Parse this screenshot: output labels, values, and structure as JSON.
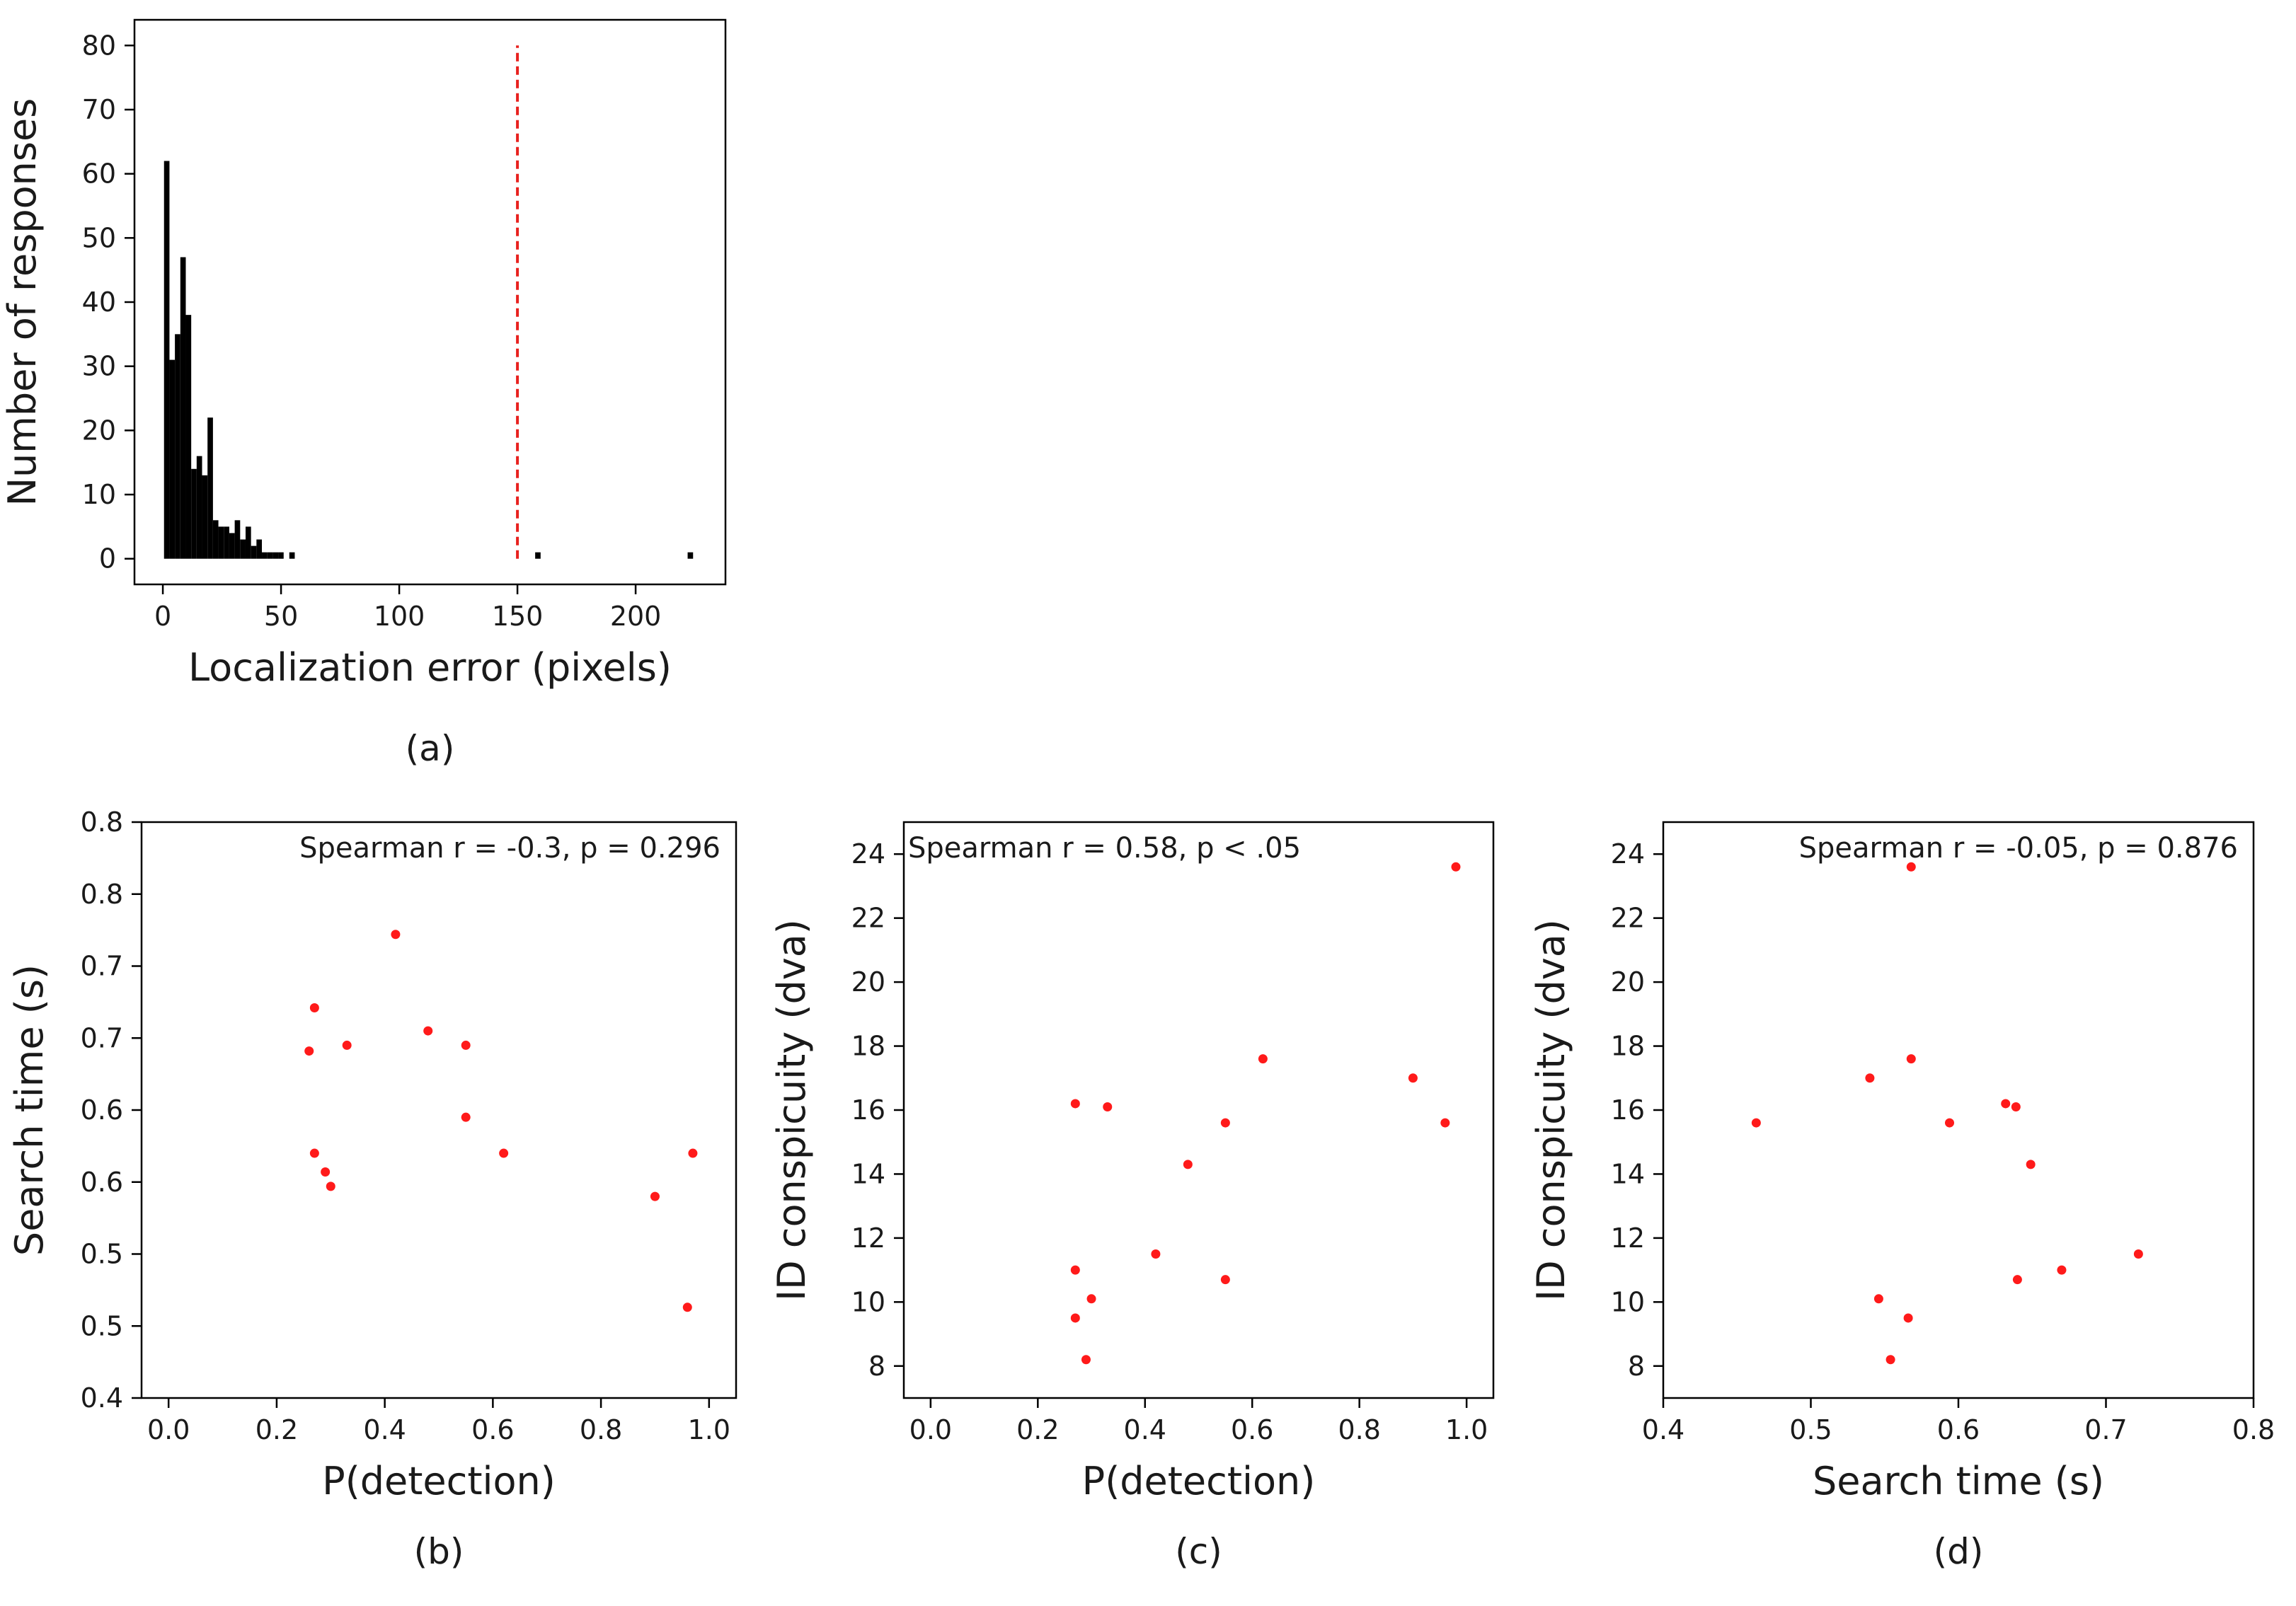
{
  "colors": {
    "hist_bar": "#000000",
    "scatter_point": "#ff1a1a",
    "threshold_line": "#e8211e",
    "axis": "#000000",
    "background": "#ffffff"
  },
  "chart_data": [
    {
      "id": "a",
      "type": "bar",
      "caption": "(a)",
      "xlabel": "Localization error (pixels)",
      "ylabel": "Number of responses",
      "xlim": [
        -12,
        238
      ],
      "ylim": [
        -4,
        84
      ],
      "xticks": [
        0,
        50,
        100,
        150,
        200
      ],
      "yticks": [
        0,
        10,
        20,
        30,
        40,
        50,
        60,
        70,
        80
      ],
      "bin_width": 2.3,
      "bins": [
        {
          "x": 0.5,
          "value": 62
        },
        {
          "x": 2.8,
          "value": 31
        },
        {
          "x": 5.1,
          "value": 35
        },
        {
          "x": 7.4,
          "value": 47
        },
        {
          "x": 9.7,
          "value": 38
        },
        {
          "x": 12.0,
          "value": 14
        },
        {
          "x": 14.3,
          "value": 16
        },
        {
          "x": 16.6,
          "value": 13
        },
        {
          "x": 18.9,
          "value": 22
        },
        {
          "x": 21.2,
          "value": 6
        },
        {
          "x": 23.5,
          "value": 5
        },
        {
          "x": 25.8,
          "value": 5
        },
        {
          "x": 28.1,
          "value": 4
        },
        {
          "x": 30.4,
          "value": 6
        },
        {
          "x": 32.7,
          "value": 3
        },
        {
          "x": 35.0,
          "value": 5
        },
        {
          "x": 37.3,
          "value": 2
        },
        {
          "x": 39.6,
          "value": 3
        },
        {
          "x": 41.9,
          "value": 1
        },
        {
          "x": 44.2,
          "value": 1
        },
        {
          "x": 46.5,
          "value": 1
        },
        {
          "x": 48.8,
          "value": 1
        },
        {
          "x": 53.5,
          "value": 1
        },
        {
          "x": 157.5,
          "value": 1
        },
        {
          "x": 222,
          "value": 1
        }
      ],
      "threshold_x": 150,
      "threshold_top": 80
    },
    {
      "id": "b",
      "type": "scatter",
      "caption": "(b)",
      "xlabel": "P(detection)",
      "ylabel": "Search time (s)",
      "annotation": "Spearman r = -0.3, p = 0.296",
      "xlim": [
        -0.05,
        1.05
      ],
      "ylim": [
        0.4,
        0.8
      ],
      "xticks": [
        0.0,
        0.2,
        0.4,
        0.6,
        0.8,
        1.0
      ],
      "xtick_labels": [
        "0.0",
        "0.2",
        "0.4",
        "0.6",
        "0.8",
        "1.0"
      ],
      "ytick_positions": [
        0.4,
        0.45,
        0.5,
        0.55,
        0.6,
        0.65,
        0.7,
        0.75,
        0.8
      ],
      "ytick_labels": [
        "0.4",
        "0.5",
        "0.5",
        "0.6",
        "0.6",
        "0.7",
        "0.7",
        "0.8",
        "0.8"
      ],
      "points": [
        {
          "x": 0.42,
          "y": 0.722
        },
        {
          "x": 0.27,
          "y": 0.671
        },
        {
          "x": 0.26,
          "y": 0.641
        },
        {
          "x": 0.33,
          "y": 0.645
        },
        {
          "x": 0.48,
          "y": 0.655
        },
        {
          "x": 0.55,
          "y": 0.645
        },
        {
          "x": 0.55,
          "y": 0.595
        },
        {
          "x": 0.27,
          "y": 0.57
        },
        {
          "x": 0.62,
          "y": 0.57
        },
        {
          "x": 0.97,
          "y": 0.57
        },
        {
          "x": 0.29,
          "y": 0.557
        },
        {
          "x": 0.3,
          "y": 0.547
        },
        {
          "x": 0.9,
          "y": 0.54
        },
        {
          "x": 0.96,
          "y": 0.463
        }
      ]
    },
    {
      "id": "c",
      "type": "scatter",
      "caption": "(c)",
      "xlabel": "P(detection)",
      "ylabel": "ID conspicuity (dva)",
      "annotation": "Spearman r = 0.58, p < .05",
      "xlim": [
        -0.05,
        1.05
      ],
      "ylim": [
        7,
        25
      ],
      "xticks": [
        0.0,
        0.2,
        0.4,
        0.6,
        0.8,
        1.0
      ],
      "xtick_labels": [
        "0.0",
        "0.2",
        "0.4",
        "0.6",
        "0.8",
        "1.0"
      ],
      "yticks": [
        8,
        10,
        12,
        14,
        16,
        18,
        20,
        22,
        24
      ],
      "points": [
        {
          "x": 0.98,
          "y": 23.6
        },
        {
          "x": 0.62,
          "y": 17.6
        },
        {
          "x": 0.9,
          "y": 17.0
        },
        {
          "x": 0.27,
          "y": 16.2
        },
        {
          "x": 0.33,
          "y": 16.1
        },
        {
          "x": 0.55,
          "y": 15.6
        },
        {
          "x": 0.96,
          "y": 15.6
        },
        {
          "x": 0.48,
          "y": 14.3
        },
        {
          "x": 0.42,
          "y": 11.5
        },
        {
          "x": 0.27,
          "y": 11.0
        },
        {
          "x": 0.55,
          "y": 10.7
        },
        {
          "x": 0.3,
          "y": 10.1
        },
        {
          "x": 0.27,
          "y": 9.5
        },
        {
          "x": 0.29,
          "y": 8.2
        }
      ]
    },
    {
      "id": "d",
      "type": "scatter",
      "caption": "(d)",
      "xlabel": "Search time (s)",
      "ylabel": "ID conspicuity (dva)",
      "annotation": "Spearman r = -0.05, p = 0.876",
      "xlim": [
        0.4,
        0.8
      ],
      "ylim": [
        7,
        25
      ],
      "xticks": [
        0.4,
        0.5,
        0.6,
        0.7,
        0.8
      ],
      "xtick_labels": [
        "0.4",
        "0.5",
        "0.6",
        "0.7",
        "0.8"
      ],
      "yticks": [
        8,
        10,
        12,
        14,
        16,
        18,
        20,
        22,
        24
      ],
      "points": [
        {
          "x": 0.568,
          "y": 23.6
        },
        {
          "x": 0.568,
          "y": 17.6
        },
        {
          "x": 0.54,
          "y": 17.0
        },
        {
          "x": 0.632,
          "y": 16.2
        },
        {
          "x": 0.639,
          "y": 16.1
        },
        {
          "x": 0.463,
          "y": 15.6
        },
        {
          "x": 0.594,
          "y": 15.6
        },
        {
          "x": 0.649,
          "y": 14.3
        },
        {
          "x": 0.722,
          "y": 11.5
        },
        {
          "x": 0.67,
          "y": 11.0
        },
        {
          "x": 0.64,
          "y": 10.7
        },
        {
          "x": 0.546,
          "y": 10.1
        },
        {
          "x": 0.566,
          "y": 9.5
        },
        {
          "x": 0.554,
          "y": 8.2
        }
      ]
    }
  ]
}
